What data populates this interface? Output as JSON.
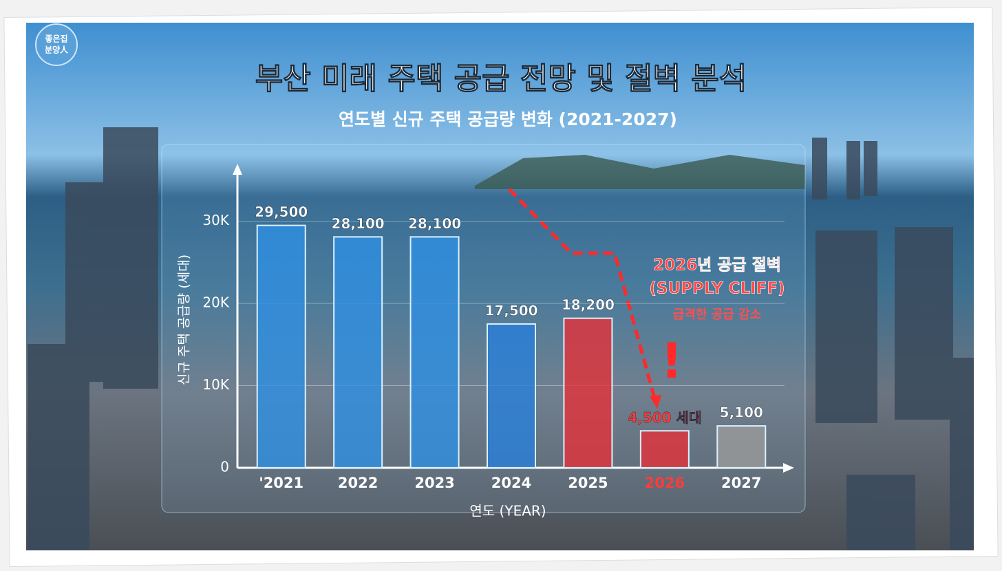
{
  "logo": [
    "좋은집",
    "분양人"
  ],
  "chart_data": {
    "type": "bar",
    "title": "부산 미래 주택 공급 전망 및 절벽 분석",
    "subtitle": "연도별 신규 주택 공급량 변화 (2021-2027)",
    "y_label": "신규 주택 공급량 (세대)",
    "x_label": "연도 (YEAR)",
    "categories": [
      "'2021",
      "2022",
      "2023",
      "2024",
      "2025",
      "2026",
      "2027"
    ],
    "values": [
      29500,
      28100,
      28100,
      17500,
      18200,
      4500,
      5100
    ],
    "value_labels": [
      "29,500",
      "28,100",
      "28,100",
      "17,500",
      "18,200",
      "4,500 세대",
      "5,100"
    ],
    "colors": [
      "#2f8fe0",
      "#2f8fe0",
      "#2f8fe0",
      "#2a7fd8",
      "#e0333a",
      "#e0333a",
      "#9a9a9a"
    ],
    "label_colors": [
      "#ffffff",
      "#ffffff",
      "#ffffff",
      "#ffffff",
      "#ffffff",
      "#ff3b3b",
      "#ffffff"
    ],
    "ylim": [
      0,
      36000
    ],
    "yticks": [
      0,
      {
        "value": 10000,
        "label": "10K"
      },
      {
        "value": 20000,
        "label": "20K"
      },
      {
        "value": 30000,
        "label": "30K"
      }
    ],
    "grid": true,
    "annotations": [
      "2026년 공급 절벽",
      "(SUPPLY CLIFF)",
      "급격한 공급 감소",
      "!"
    ]
  }
}
